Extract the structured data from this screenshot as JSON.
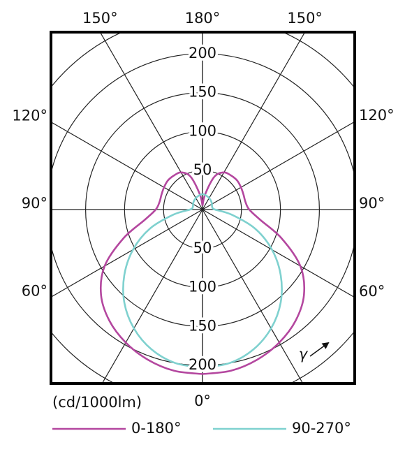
{
  "chart_data": {
    "type": "polar",
    "unit_label": "(cd/1000lm)",
    "direction_label": "γ",
    "rlim": [
      0,
      250
    ],
    "rticks": [
      50,
      100,
      150,
      200
    ],
    "grid_angles": [
      0,
      30,
      60,
      90,
      120,
      150,
      180
    ],
    "angle_ticks": [
      {
        "value": 0,
        "label": "0°"
      },
      {
        "value": 60,
        "label": "60°"
      },
      {
        "value": 90,
        "label": "90°"
      },
      {
        "value": 120,
        "label": "120°"
      },
      {
        "value": 150,
        "label": "150°"
      },
      {
        "value": 180,
        "label": "180°"
      }
    ],
    "angles": [
      0,
      10,
      20,
      30,
      40,
      50,
      60,
      70,
      80,
      90,
      100,
      110,
      120,
      130,
      140,
      150,
      160,
      170,
      180
    ],
    "series": [
      {
        "name": "0-180°",
        "color": "#b4479f",
        "values": [
          211,
          210,
          205,
          197,
          186,
          170,
          145,
          108,
          75,
          60,
          56,
          56,
          57,
          58,
          57,
          55,
          45,
          20,
          5
        ]
      },
      {
        "name": "90-270°",
        "color": "#7fd1cf",
        "values": [
          203,
          200,
          191,
          176,
          156,
          131,
          103,
          72,
          38,
          16,
          13,
          13,
          14,
          15,
          16,
          17,
          18,
          19,
          20
        ]
      }
    ]
  }
}
